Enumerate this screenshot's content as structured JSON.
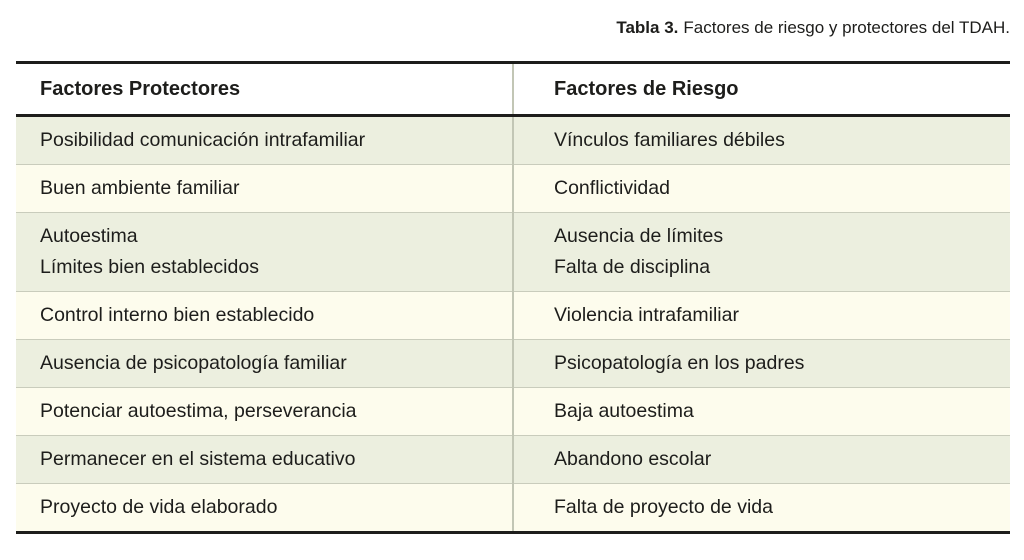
{
  "caption": {
    "label": "Tabla 3.",
    "text": "Factores de riesgo y protectores del TDAH."
  },
  "table": {
    "headers": {
      "protectores": "Factores Protectores",
      "riesgo": "Factores de Riesgo"
    },
    "rows": [
      {
        "protectores": [
          "Posibilidad comunicación intrafamiliar"
        ],
        "riesgo": [
          "Vínculos familiares débiles"
        ]
      },
      {
        "protectores": [
          "Buen ambiente familiar"
        ],
        "riesgo": [
          "Conflictividad"
        ]
      },
      {
        "protectores": [
          "Autoestima",
          "Límites bien establecidos"
        ],
        "riesgo": [
          "Ausencia de límites",
          "Falta de disciplina"
        ]
      },
      {
        "protectores": [
          "Control interno bien establecido"
        ],
        "riesgo": [
          "Violencia intrafamiliar"
        ]
      },
      {
        "protectores": [
          "Ausencia de psicopatología familiar"
        ],
        "riesgo": [
          "Psicopatología en los padres"
        ]
      },
      {
        "protectores": [
          "Potenciar autoestima, perseverancia"
        ],
        "riesgo": [
          "Baja autoestima"
        ]
      },
      {
        "protectores": [
          "Permanecer en el sistema educativo"
        ],
        "riesgo": [
          "Abandono escolar"
        ]
      },
      {
        "protectores": [
          "Proyecto de vida elaborado"
        ],
        "riesgo": [
          "Falta de proyecto de vida"
        ]
      }
    ]
  },
  "colors": {
    "row_green": "#ecefdf",
    "row_cream": "#fdfced",
    "header_bg": "#ffffff",
    "rule_dark": "#1d1d1b",
    "divider_light": "#c2c6b5",
    "row_separator": "#c9ccbc",
    "text": "#1d1d1b"
  }
}
